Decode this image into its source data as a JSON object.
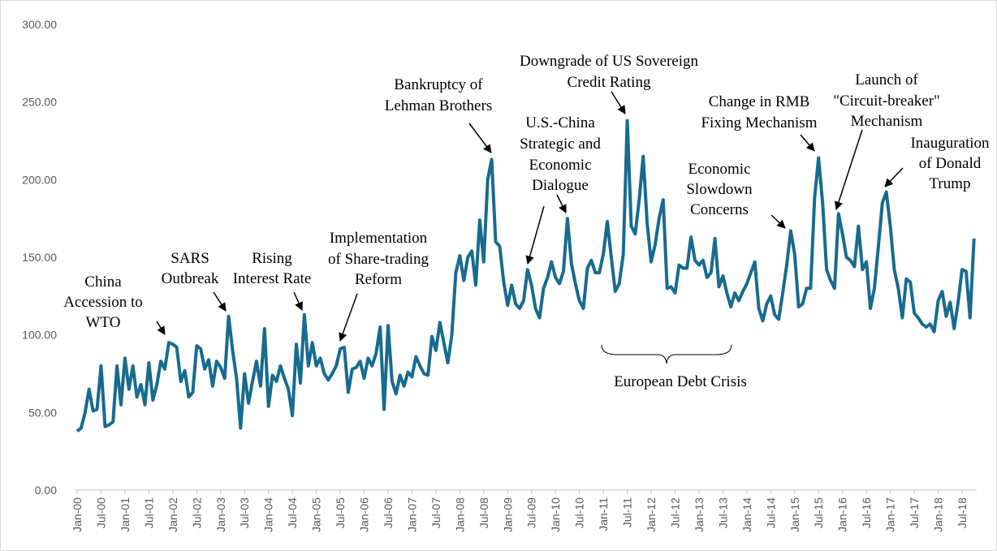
{
  "chart_data": {
    "type": "line",
    "categories": [
      "Jan-00",
      null,
      null,
      null,
      null,
      null,
      "Jul-00",
      null,
      null,
      null,
      null,
      null,
      "Jan-01",
      null,
      null,
      null,
      null,
      null,
      "Jul-01",
      null,
      null,
      null,
      null,
      null,
      "Jan-02",
      null,
      null,
      null,
      null,
      null,
      "Jul-02",
      null,
      null,
      null,
      null,
      null,
      "Jan-03",
      null,
      null,
      null,
      null,
      null,
      "Jul-03",
      null,
      null,
      null,
      null,
      null,
      "Jan-04",
      null,
      null,
      null,
      null,
      null,
      "Jul-04",
      null,
      null,
      null,
      null,
      null,
      "Jan-05",
      null,
      null,
      null,
      null,
      null,
      "Jul-05",
      null,
      null,
      null,
      null,
      null,
      "Jan-06",
      null,
      null,
      null,
      null,
      null,
      "Jul-06",
      null,
      null,
      null,
      null,
      null,
      "Jan-07",
      null,
      null,
      null,
      null,
      null,
      "Jul-07",
      null,
      null,
      null,
      null,
      null,
      "Jan-08",
      null,
      null,
      null,
      null,
      null,
      "Jul-08",
      null,
      null,
      null,
      null,
      null,
      "Jan-09",
      null,
      null,
      null,
      null,
      null,
      "Jul-09",
      null,
      null,
      null,
      null,
      null,
      "Jan-10",
      null,
      null,
      null,
      null,
      null,
      "Jul-10",
      null,
      null,
      null,
      null,
      null,
      "Jan-11",
      null,
      null,
      null,
      null,
      null,
      "Jul-11",
      null,
      null,
      null,
      null,
      null,
      "Jan-12",
      null,
      null,
      null,
      null,
      null,
      "Jul-12",
      null,
      null,
      null,
      null,
      null,
      "Jan-13",
      null,
      null,
      null,
      null,
      null,
      "Jul-13",
      null,
      null,
      null,
      null,
      null,
      "Jan-14",
      null,
      null,
      null,
      null,
      null,
      "Jul-14",
      null,
      null,
      null,
      null,
      null,
      "Jan-15",
      null,
      null,
      null,
      null,
      null,
      "Jul-15",
      null,
      null,
      null,
      null,
      null,
      "Jan-16",
      null,
      null,
      null,
      null,
      null,
      "Jul-16",
      null,
      null,
      null,
      null,
      null,
      "Jan-17",
      null,
      null,
      null,
      null,
      null,
      "Jul-17",
      null,
      null,
      null,
      null,
      null,
      "Jan-18",
      null,
      null,
      null,
      null,
      null,
      "Jul-18",
      null,
      null,
      null
    ],
    "values": [
      38,
      40,
      50,
      65,
      51,
      52,
      80,
      41,
      42,
      44,
      80,
      55,
      85,
      65,
      80,
      60,
      68,
      55,
      82,
      58,
      68,
      83,
      78,
      95,
      94,
      92,
      70,
      77,
      60,
      63,
      93,
      91,
      78,
      84,
      67,
      83,
      79,
      72,
      112,
      90,
      72,
      40,
      75,
      56,
      70,
      83,
      67,
      104,
      54,
      74,
      70,
      80,
      72,
      65,
      48,
      94,
      69,
      113,
      80,
      95,
      80,
      85,
      75,
      71,
      75,
      80,
      91,
      92,
      63,
      78,
      79,
      83,
      72,
      85,
      80,
      88,
      105,
      52,
      106,
      70,
      62,
      74,
      67,
      76,
      73,
      86,
      80,
      75,
      74,
      99,
      90,
      108,
      95,
      82,
      100,
      140,
      151,
      135,
      150,
      154,
      132,
      174,
      147,
      200,
      213,
      160,
      157,
      134,
      119,
      132,
      120,
      117,
      122,
      142,
      132,
      117,
      111,
      130,
      137,
      147,
      137,
      133,
      141,
      175,
      146,
      133,
      122,
      117,
      143,
      148,
      140,
      140,
      152,
      173,
      150,
      128,
      133,
      152,
      238,
      170,
      165,
      187,
      215,
      172,
      147,
      158,
      175,
      187,
      130,
      131,
      127,
      145,
      143,
      143,
      163,
      148,
      145,
      148,
      137,
      140,
      162,
      131,
      138,
      127,
      118,
      127,
      122,
      128,
      133,
      140,
      147,
      117,
      109,
      120,
      125,
      113,
      110,
      127,
      145,
      167,
      152,
      118,
      120,
      130,
      130,
      188,
      214,
      185,
      142,
      135,
      130,
      178,
      165,
      150,
      148,
      144,
      170,
      142,
      147,
      117,
      130,
      157,
      185,
      192,
      170,
      142,
      130,
      111,
      136,
      134,
      114,
      111,
      107,
      105,
      107,
      102,
      122,
      128,
      112,
      121,
      104,
      121,
      142,
      141,
      111,
      162
    ],
    "color": "#176b8f",
    "ylim": [
      0,
      300
    ],
    "yticks": [
      {
        "value": 0,
        "label": "0.00"
      },
      {
        "value": 50,
        "label": "50.00"
      },
      {
        "value": 100,
        "label": "100.00"
      },
      {
        "value": 150,
        "label": "150.00"
      },
      {
        "value": 200,
        "label": "200.00"
      },
      {
        "value": 250,
        "label": "250.00"
      },
      {
        "value": 300,
        "label": "300.00"
      }
    ],
    "grid": false,
    "annotations": [
      {
        "lines": [
          "China",
          "Accession to",
          "WTO"
        ]
      },
      {
        "lines": [
          "SARS",
          "Outbreak"
        ]
      },
      {
        "lines": [
          "Rising",
          "Interest Rate"
        ]
      },
      {
        "lines": [
          "Implementation",
          "of Share-trading",
          "Reform"
        ]
      },
      {
        "lines": [
          "Bankruptcy of",
          "Lehman Brothers"
        ]
      },
      {
        "lines": [
          "U.S.-China",
          "Strategic and",
          "Economic",
          "Dialogue"
        ]
      },
      {
        "lines": [
          "Downgrade of US Sovereign",
          "Credit Rating"
        ]
      },
      {
        "lines": [
          "Change in RMB",
          "Fixing Mechanism"
        ]
      },
      {
        "lines": [
          "Launch of",
          "\"Circuit-breaker\"",
          "Mechanism"
        ]
      },
      {
        "lines": [
          "Economic",
          "Slowdown",
          "Concerns"
        ]
      },
      {
        "lines": [
          "Inauguration",
          "of Donald",
          "Trump"
        ]
      },
      {
        "lines": [
          "European Debt Crisis"
        ]
      }
    ]
  }
}
